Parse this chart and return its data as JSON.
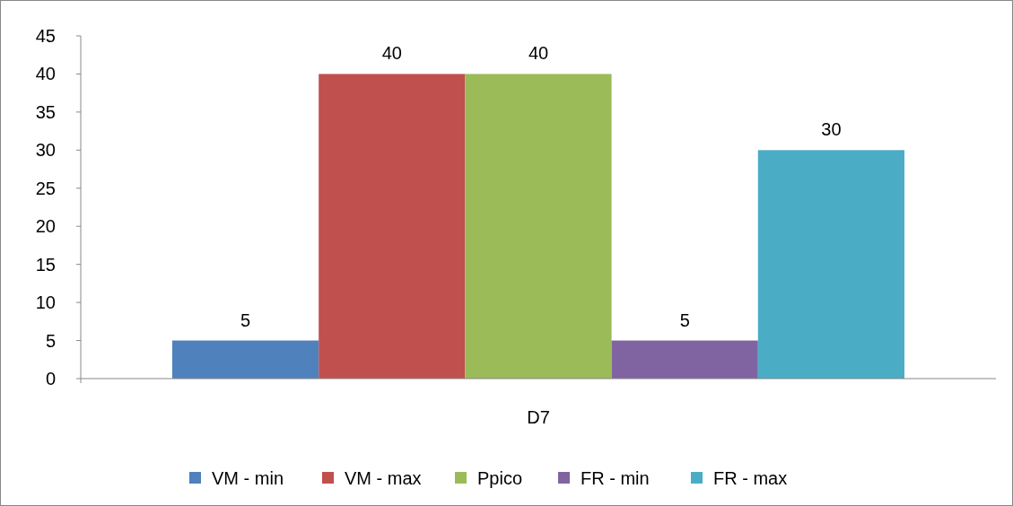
{
  "chart_data": {
    "type": "bar",
    "categories": [
      "D7"
    ],
    "series": [
      {
        "name": "VM - min",
        "color": "#4f81bd",
        "values": [
          5
        ]
      },
      {
        "name": "VM - max",
        "color": "#c0504d",
        "values": [
          40
        ]
      },
      {
        "name": "Ppico",
        "color": "#9bbb59",
        "values": [
          40
        ]
      },
      {
        "name": "FR - min",
        "color": "#8064a2",
        "values": [
          5
        ]
      },
      {
        "name": "FR - max",
        "color": "#4bacc6",
        "values": [
          30
        ]
      }
    ],
    "ylim": [
      0,
      45
    ],
    "yticks": [
      0,
      5,
      10,
      15,
      20,
      25,
      30,
      35,
      40,
      45
    ],
    "grid": false,
    "legend": "bottom",
    "data_labels": true
  }
}
